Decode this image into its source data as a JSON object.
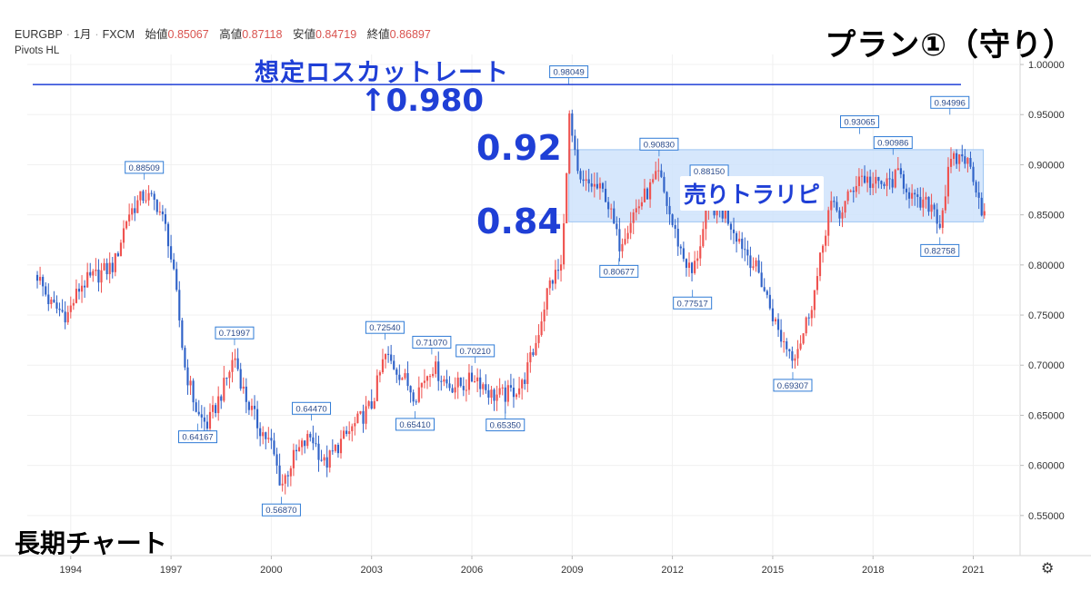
{
  "header": {
    "symbol": "EURGBP",
    "interval": "1月",
    "source": "FXCM",
    "open_label": "始値",
    "open": "0.85067",
    "high_label": "高値",
    "high": "0.87118",
    "low_label": "安値",
    "low": "0.84719",
    "close_label": "終値",
    "close": "0.86897",
    "indicator": "Pivots HL"
  },
  "annotations": {
    "plan_title": "プラン①（守り）",
    "losscut_label": "想定ロスカットレート",
    "losscut_value": "↑0.980",
    "range_top": "0.92",
    "range_bottom": "0.84",
    "range_label": "売りトラリピ",
    "corner_label": "長期チャート"
  },
  "colors": {
    "up": "#ef5350",
    "down": "#2f62c8",
    "line": "#1f3fd6",
    "band": "#cfe3fb",
    "pivot_border": "#2f7bd6"
  },
  "chart_data": {
    "type": "candlestick",
    "x_ticks": [
      "1994",
      "1997",
      "2000",
      "2003",
      "2006",
      "2009",
      "2012",
      "2015",
      "2018",
      "2021"
    ],
    "y_ticks": [
      "1.00000",
      "0.95000",
      "0.90000",
      "0.85000",
      "0.80000",
      "0.75000",
      "0.70000",
      "0.65000",
      "0.60000",
      "0.55000"
    ],
    "ylim": [
      0.51,
      1.01
    ],
    "xlim": [
      1992.7,
      2022.4
    ],
    "pivots": [
      {
        "t": 1996.2,
        "v": 0.88509,
        "label": "0.88509",
        "pos": "above"
      },
      {
        "t": 1998.9,
        "v": 0.71997,
        "label": "0.71997",
        "pos": "above"
      },
      {
        "t": 1997.8,
        "v": 0.64167,
        "label": "0.64167",
        "pos": "below"
      },
      {
        "t": 2000.3,
        "v": 0.5687,
        "label": "0.56870",
        "pos": "below"
      },
      {
        "t": 2001.2,
        "v": 0.6447,
        "label": "0.64470",
        "pos": "above"
      },
      {
        "t": 2003.4,
        "v": 0.7254,
        "label": "0.72540",
        "pos": "above"
      },
      {
        "t": 2004.3,
        "v": 0.6541,
        "label": "0.65410",
        "pos": "below"
      },
      {
        "t": 2004.8,
        "v": 0.7107,
        "label": "0.71070",
        "pos": "above"
      },
      {
        "t": 2006.1,
        "v": 0.7021,
        "label": "0.70210",
        "pos": "above"
      },
      {
        "t": 2007.0,
        "v": 0.6535,
        "label": "0.65350",
        "pos": "below"
      },
      {
        "t": 2008.9,
        "v": 0.98049,
        "label": "0.98049",
        "pos": "above"
      },
      {
        "t": 2010.4,
        "v": 0.80677,
        "label": "0.80677",
        "pos": "below"
      },
      {
        "t": 2011.6,
        "v": 0.9083,
        "label": "0.90830",
        "pos": "above"
      },
      {
        "t": 2012.6,
        "v": 0.77517,
        "label": "0.77517",
        "pos": "below"
      },
      {
        "t": 2013.1,
        "v": 0.8815,
        "label": "0.88150",
        "pos": "above"
      },
      {
        "t": 2015.6,
        "v": 0.69307,
        "label": "0.69307",
        "pos": "below"
      },
      {
        "t": 2017.6,
        "v": 0.93065,
        "label": "0.93065",
        "pos": "above"
      },
      {
        "t": 2018.6,
        "v": 0.90986,
        "label": "0.90986",
        "pos": "above"
      },
      {
        "t": 2020.0,
        "v": 0.82758,
        "label": "0.82758",
        "pos": "below"
      },
      {
        "t": 2020.3,
        "v": 0.94996,
        "label": "0.94996",
        "pos": "above"
      }
    ],
    "path": [
      [
        1993.0,
        0.79
      ],
      [
        1993.4,
        0.76
      ],
      [
        1993.9,
        0.75
      ],
      [
        1994.3,
        0.78
      ],
      [
        1994.8,
        0.79
      ],
      [
        1995.3,
        0.8
      ],
      [
        1995.7,
        0.85
      ],
      [
        1996.2,
        0.87
      ],
      [
        1996.6,
        0.86
      ],
      [
        1996.9,
        0.83
      ],
      [
        1997.2,
        0.76
      ],
      [
        1997.4,
        0.7
      ],
      [
        1997.8,
        0.65
      ],
      [
        1998.1,
        0.64
      ],
      [
        1998.6,
        0.68
      ],
      [
        1998.9,
        0.71
      ],
      [
        1999.2,
        0.67
      ],
      [
        1999.6,
        0.64
      ],
      [
        2000.0,
        0.62
      ],
      [
        2000.3,
        0.58
      ],
      [
        2000.7,
        0.61
      ],
      [
        2001.2,
        0.63
      ],
      [
        2001.6,
        0.6
      ],
      [
        2002.0,
        0.62
      ],
      [
        2002.5,
        0.64
      ],
      [
        2003.0,
        0.66
      ],
      [
        2003.4,
        0.71
      ],
      [
        2003.9,
        0.69
      ],
      [
        2004.3,
        0.67
      ],
      [
        2004.8,
        0.7
      ],
      [
        2005.3,
        0.68
      ],
      [
        2005.8,
        0.68
      ],
      [
        2006.1,
        0.69
      ],
      [
        2006.6,
        0.67
      ],
      [
        2007.0,
        0.67
      ],
      [
        2007.5,
        0.68
      ],
      [
        2007.9,
        0.72
      ],
      [
        2008.3,
        0.78
      ],
      [
        2008.7,
        0.8
      ],
      [
        2008.9,
        0.95
      ],
      [
        2009.2,
        0.88
      ],
      [
        2009.6,
        0.88
      ],
      [
        2010.0,
        0.87
      ],
      [
        2010.4,
        0.82
      ],
      [
        2010.8,
        0.85
      ],
      [
        2011.2,
        0.87
      ],
      [
        2011.6,
        0.89
      ],
      [
        2012.0,
        0.84
      ],
      [
        2012.3,
        0.81
      ],
      [
        2012.6,
        0.79
      ],
      [
        2013.1,
        0.86
      ],
      [
        2013.6,
        0.85
      ],
      [
        2014.1,
        0.82
      ],
      [
        2014.6,
        0.79
      ],
      [
        2015.2,
        0.73
      ],
      [
        2015.6,
        0.71
      ],
      [
        2015.9,
        0.73
      ],
      [
        2016.3,
        0.78
      ],
      [
        2016.7,
        0.86
      ],
      [
        2017.0,
        0.85
      ],
      [
        2017.3,
        0.87
      ],
      [
        2017.6,
        0.89
      ],
      [
        2018.0,
        0.88
      ],
      [
        2018.4,
        0.88
      ],
      [
        2018.8,
        0.89
      ],
      [
        2019.3,
        0.86
      ],
      [
        2019.8,
        0.86
      ],
      [
        2020.0,
        0.84
      ],
      [
        2020.3,
        0.9
      ],
      [
        2020.7,
        0.91
      ],
      [
        2021.0,
        0.89
      ],
      [
        2021.3,
        0.85
      ]
    ],
    "losscut_level": 0.98,
    "band": {
      "x0": 2008.9,
      "x1": 2021.3,
      "top": 0.915,
      "bottom": 0.843
    }
  }
}
